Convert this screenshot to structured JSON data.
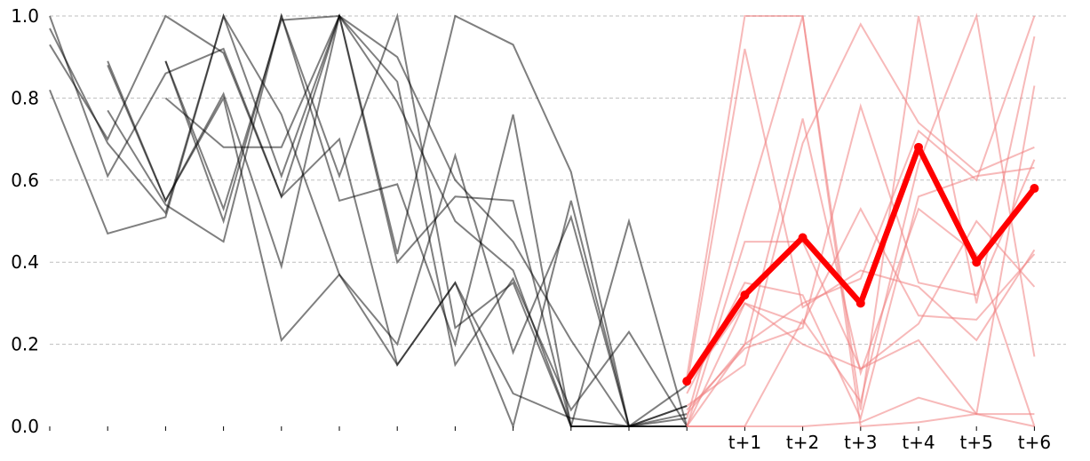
{
  "chart_data": {
    "type": "line",
    "ylim": [
      0,
      1
    ],
    "yticks": [
      "0.0",
      "0.2",
      "0.4",
      "0.6",
      "0.8",
      "1.0"
    ],
    "x_history_steps": 12,
    "x_forecast_labels": [
      "t+1",
      "t+2",
      "t+3",
      "t+4",
      "t+5",
      "t+6"
    ],
    "grid": true,
    "colors": {
      "history": "#000000",
      "forecast_samples": "#f08080",
      "forecast_mean": "#ff0000"
    },
    "history_series": [
      [
        0.93,
        0.7,
        1.0,
        0.91,
        0.56,
        1.0,
        0.9,
        0.6,
        0.45,
        0.21,
        0.0,
        0.05
      ],
      [
        1.0,
        0.61,
        0.86,
        0.92,
        0.56,
        0.7,
        0.15,
        0.35,
        0.08,
        0.02,
        0.0,
        0.1
      ],
      [
        0.97,
        0.69,
        0.52,
        1.0,
        0.76,
        0.37,
        0.2,
        0.66,
        0.18,
        0.51,
        0.0,
        0.02
      ],
      [
        0.88,
        0.55,
        0.81,
        0.39,
        1.0,
        0.84,
        0.15,
        0.36,
        0.04,
        0.23,
        0.0
      ],
      [
        0.82,
        0.47,
        0.51,
        1.0,
        0.61,
        1.0,
        0.79,
        0.5,
        0.38,
        0.0,
        0.5,
        0.0
      ],
      [
        0.77,
        0.54,
        0.45,
        1.0,
        0.61,
        1.0,
        0.24,
        0.35,
        0.0,
        0.0,
        0.05
      ],
      [
        0.8,
        0.68,
        0.68,
        1.0,
        0.42,
        1.0,
        0.93,
        0.62,
        0.0,
        0.0
      ],
      [
        0.89,
        0.55,
        0.8,
        0.21,
        0.37,
        0.15,
        0.35,
        0.0,
        0.55,
        0.0,
        0.03
      ],
      [
        0.89,
        0.5,
        1.0,
        0.55,
        0.59,
        0.2,
        0.76,
        0.0,
        0.0,
        0.0
      ],
      [
        0.89,
        0.53,
        0.99,
        1.0,
        0.4,
        0.56,
        0.55,
        0.0,
        0.0,
        0.0
      ]
    ],
    "forecast_samples": [
      [
        0.1,
        0.92,
        0.29,
        0.38,
        0.34,
        0.21,
        0.43
      ],
      [
        0.02,
        0.52,
        1.0,
        0.04,
        1.0,
        0.3,
        0.95
      ],
      [
        0.0,
        0.45,
        0.45,
        0.14,
        0.25,
        0.5,
        0.34
      ],
      [
        0.05,
        0.15,
        0.69,
        0.98,
        0.74,
        0.62,
        0.68
      ],
      [
        0.03,
        0.2,
        0.75,
        0.13,
        0.53,
        0.42,
        0.0
      ],
      [
        0.08,
        0.35,
        0.32,
        0.02,
        0.56,
        0.61,
        0.63
      ],
      [
        0.0,
        0.0,
        0.0,
        0.01,
        0.07,
        0.03,
        0.0
      ],
      [
        0.04,
        0.19,
        0.24,
        0.78,
        0.35,
        0.32,
        0.65
      ],
      [
        0.0,
        0.3,
        0.25,
        0.53,
        0.27,
        0.26,
        0.42
      ],
      [
        0.1,
        0.3,
        0.2,
        0.14,
        0.21,
        0.03,
        0.03
      ],
      [
        0.0,
        0.0,
        0.26,
        0.06,
        0.64,
        1.0,
        0.17
      ],
      [
        0.12,
        1.0,
        1.0,
        0.0,
        0.01,
        0.03,
        0.83
      ],
      [
        0.0,
        0.2,
        0.3,
        0.36,
        0.72,
        0.6,
        1.0
      ]
    ],
    "forecast_mean": [
      0.11,
      0.32,
      0.46,
      0.3,
      0.68,
      0.4,
      0.58
    ]
  }
}
